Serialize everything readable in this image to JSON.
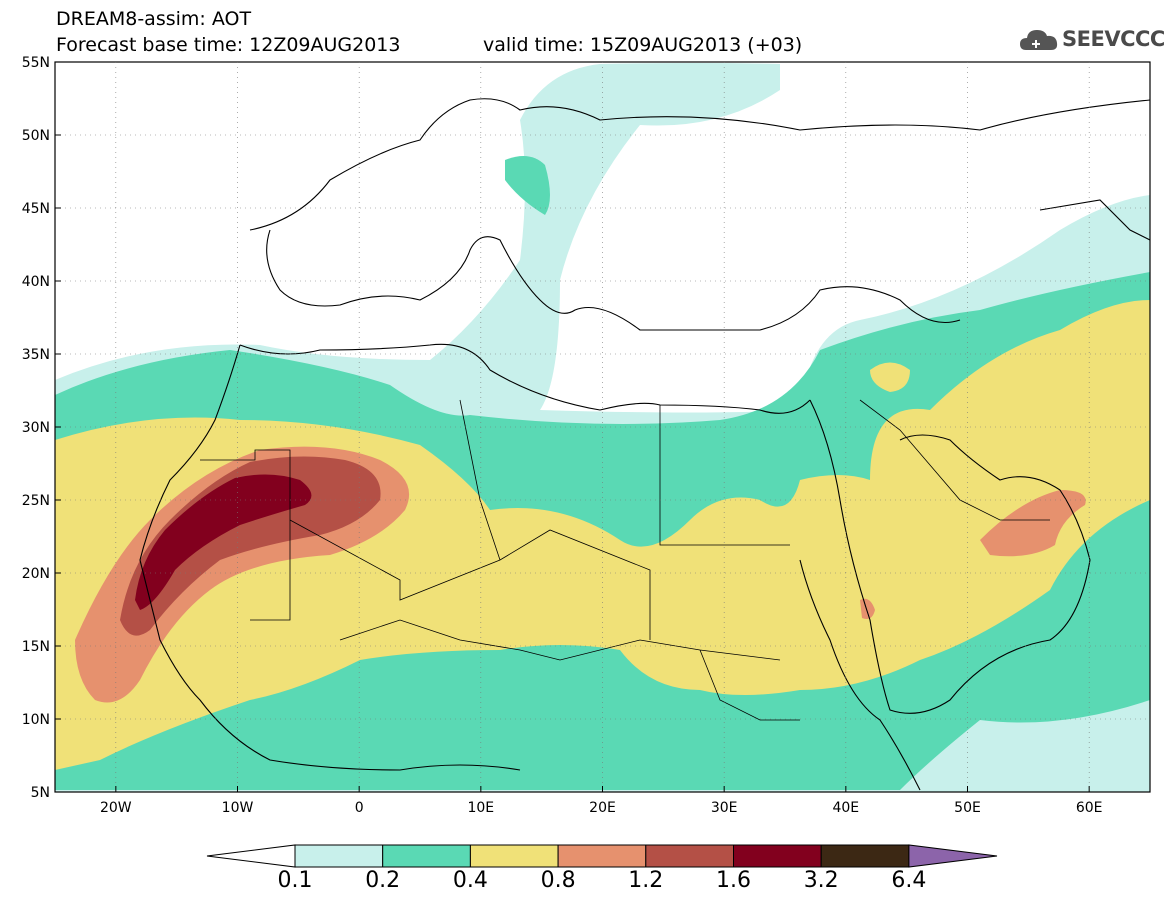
{
  "header": {
    "line1": "DREAM8-assim: AOT",
    "line2_left": "Forecast base time: 12Z09AUG2013",
    "line2_right": "valid time: 15Z09AUG2013 (+03)",
    "logo_text": "SEEVCCC"
  },
  "axes": {
    "lat_labels": [
      "55N",
      "50N",
      "45N",
      "40N",
      "35N",
      "30N",
      "25N",
      "20N",
      "15N",
      "10N",
      "5N"
    ],
    "lon_labels": [
      "20W",
      "10W",
      "0",
      "10E",
      "20E",
      "30E",
      "40E",
      "50E",
      "60E"
    ],
    "lon_range": [
      -25,
      65
    ],
    "lat_range": [
      5,
      55
    ]
  },
  "legend": {
    "labels": [
      "0.1",
      "0.2",
      "0.4",
      "0.8",
      "1.2",
      "1.6",
      "3.2",
      "6.4"
    ],
    "colors": [
      "#ffffff",
      "#c8f0eb",
      "#5ad9b4",
      "#f0e178",
      "#e6916e",
      "#b45046",
      "#82001e",
      "#3c2814",
      "#8c64aa"
    ]
  },
  "colors": {
    "c01": "#c8f0eb",
    "c02": "#5ad9b4",
    "c04": "#f0e178",
    "c08": "#e6916e",
    "c12": "#b45046",
    "c16": "#82001e"
  }
}
